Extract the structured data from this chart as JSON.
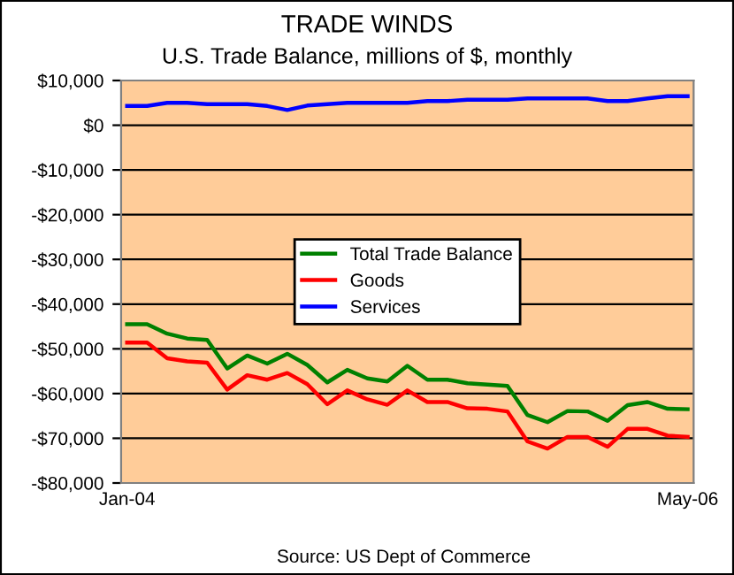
{
  "chart_data": {
    "type": "line",
    "title": "TRADE WINDS",
    "subtitle": "U.S. Trade Balance, millions of $, monthly",
    "categories": [
      "Jan-04",
      null,
      null,
      null,
      null,
      null,
      null,
      null,
      null,
      null,
      null,
      null,
      null,
      null,
      null,
      null,
      null,
      null,
      null,
      null,
      null,
      null,
      null,
      null,
      null,
      null,
      null,
      null,
      "May-06"
    ],
    "series": [
      {
        "name": "Total Trade Balance",
        "color": "#008000",
        "values": [
          -44500,
          -44500,
          -46600,
          -47700,
          -48000,
          -54400,
          -51500,
          -53300,
          -51100,
          -53600,
          -57500,
          -54700,
          -56600,
          -57300,
          -53800,
          -56900,
          -56900,
          -57700,
          -58000,
          -58300,
          -64800,
          -66400,
          -63900,
          -64000,
          -66100,
          -62600,
          -61900,
          -63400,
          -63500
        ]
      },
      {
        "name": "Goods",
        "color": "#ff0000",
        "values": [
          -48600,
          -48600,
          -52100,
          -52800,
          -53100,
          -59100,
          -55900,
          -56900,
          -55400,
          -57900,
          -62400,
          -59300,
          -61300,
          -62500,
          -59300,
          -61900,
          -61900,
          -63300,
          -63400,
          -64000,
          -70700,
          -72300,
          -69700,
          -69700,
          -71900,
          -67900,
          -67900,
          -69400,
          -69700
        ]
      },
      {
        "name": "Services",
        "color": "#0000ff",
        "values": [
          4300,
          4300,
          5000,
          5000,
          4700,
          4700,
          4700,
          4300,
          3400,
          4400,
          4700,
          5000,
          5000,
          5000,
          5000,
          5400,
          5400,
          5700,
          5700,
          5700,
          6000,
          6000,
          6000,
          6000,
          5400,
          5400,
          6000,
          6500,
          6500
        ]
      }
    ],
    "ylim": [
      -80000,
      10000
    ],
    "yticks": [
      {
        "value": -80000,
        "label": "-$80,000"
      },
      {
        "value": -70000,
        "label": "-$70,000"
      },
      {
        "value": -60000,
        "label": "-$60,000"
      },
      {
        "value": -50000,
        "label": "-$50,000"
      },
      {
        "value": -40000,
        "label": "-$40,000"
      },
      {
        "value": -30000,
        "label": "-$30,000"
      },
      {
        "value": -20000,
        "label": "-$20,000"
      },
      {
        "value": -10000,
        "label": "-$10,000"
      },
      {
        "value": 0,
        "label": "$0"
      },
      {
        "value": 10000,
        "label": "$10,000"
      }
    ],
    "grid": "y",
    "legend": "center",
    "marker": "none",
    "line_style": "solid",
    "annotations": [
      "Source: US Dept of Commerce"
    ]
  }
}
